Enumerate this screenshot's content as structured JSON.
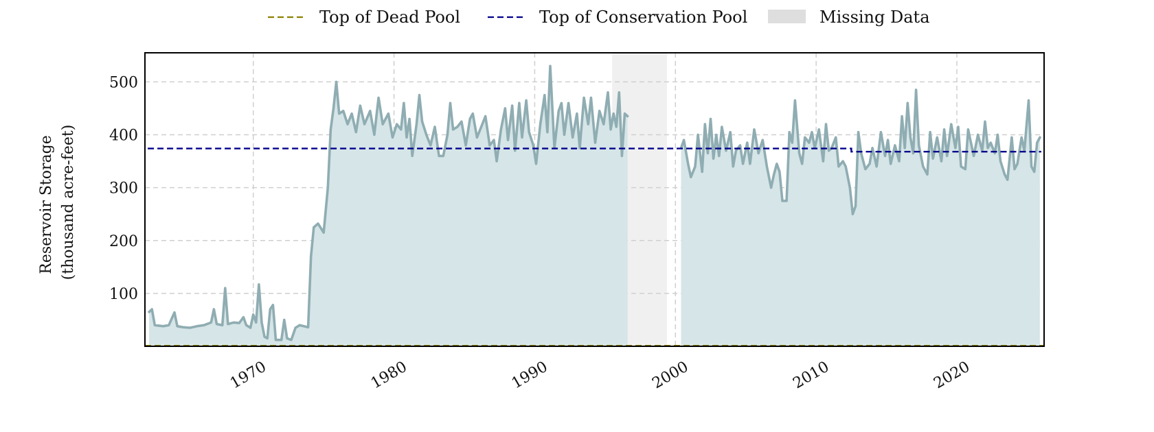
{
  "chart_data": {
    "type": "area",
    "xlabel": "",
    "ylabel_line1": "Reservoir Storage",
    "ylabel_line2": "(thousand acre-feet)",
    "xlim": [
      1962.3,
      2026.2
    ],
    "ylim": [
      0,
      555
    ],
    "xticks": [
      1970,
      1980,
      1990,
      2000,
      2010,
      2020
    ],
    "yticks": [
      100,
      200,
      300,
      400,
      500
    ],
    "grid": true,
    "legend_position": "top-center",
    "legend": [
      {
        "label": "Top of Dead Pool",
        "style": "dashed-line",
        "color": "#8b8000"
      },
      {
        "label": "Top of Conservation Pool",
        "style": "dashed-line",
        "color": "#00008b"
      },
      {
        "label": "Missing Data",
        "style": "patch",
        "color": "#dedede"
      }
    ],
    "missing_data": [
      [
        1995.5,
        1999.4
      ]
    ],
    "dead_pool": 0,
    "conservation_pool": [
      {
        "x_start": 1962.5,
        "x_end": 2012.5,
        "y": 374
      },
      {
        "x_start": 2012.5,
        "x_end": 2026.0,
        "y": 368
      }
    ],
    "series": [
      {
        "color_line": "#8fadb2",
        "color_fill": "#d6e5e7",
        "points": [
          [
            1962.6,
            65
          ],
          [
            1962.8,
            70
          ],
          [
            1963.0,
            40
          ],
          [
            1963.6,
            38
          ],
          [
            1964.0,
            40
          ],
          [
            1964.4,
            64
          ],
          [
            1964.6,
            38
          ],
          [
            1965.0,
            36
          ],
          [
            1965.5,
            35
          ],
          [
            1966.0,
            38
          ],
          [
            1966.5,
            40
          ],
          [
            1967.0,
            45
          ],
          [
            1967.2,
            70
          ],
          [
            1967.4,
            42
          ],
          [
            1967.8,
            40
          ],
          [
            1968.0,
            110
          ],
          [
            1968.2,
            42
          ],
          [
            1968.6,
            45
          ],
          [
            1969.0,
            44
          ],
          [
            1969.3,
            55
          ],
          [
            1969.5,
            40
          ],
          [
            1969.8,
            35
          ],
          [
            1970.0,
            60
          ],
          [
            1970.2,
            45
          ],
          [
            1970.4,
            117
          ],
          [
            1970.6,
            45
          ],
          [
            1970.8,
            18
          ],
          [
            1971.0,
            15
          ],
          [
            1971.2,
            70
          ],
          [
            1971.4,
            78
          ],
          [
            1971.6,
            12
          ],
          [
            1972.0,
            12
          ],
          [
            1972.2,
            50
          ],
          [
            1972.4,
            15
          ],
          [
            1972.7,
            12
          ],
          [
            1973.0,
            35
          ],
          [
            1973.3,
            40
          ],
          [
            1973.6,
            38
          ],
          [
            1973.9,
            36
          ],
          [
            1974.1,
            170
          ],
          [
            1974.3,
            225
          ],
          [
            1974.6,
            232
          ],
          [
            1975.0,
            215
          ],
          [
            1975.3,
            300
          ],
          [
            1975.5,
            410
          ],
          [
            1975.7,
            450
          ],
          [
            1975.9,
            500
          ],
          [
            1976.1,
            440
          ],
          [
            1976.4,
            445
          ],
          [
            1976.7,
            420
          ],
          [
            1977.0,
            440
          ],
          [
            1977.3,
            405
          ],
          [
            1977.6,
            455
          ],
          [
            1977.9,
            420
          ],
          [
            1978.3,
            445
          ],
          [
            1978.6,
            400
          ],
          [
            1978.9,
            470
          ],
          [
            1979.2,
            420
          ],
          [
            1979.6,
            440
          ],
          [
            1979.9,
            395
          ],
          [
            1980.2,
            420
          ],
          [
            1980.5,
            410
          ],
          [
            1980.7,
            460
          ],
          [
            1980.9,
            395
          ],
          [
            1981.1,
            430
          ],
          [
            1981.3,
            360
          ],
          [
            1981.6,
            420
          ],
          [
            1981.8,
            475
          ],
          [
            1982.0,
            425
          ],
          [
            1982.3,
            400
          ],
          [
            1982.6,
            380
          ],
          [
            1982.9,
            415
          ],
          [
            1983.2,
            360
          ],
          [
            1983.5,
            360
          ],
          [
            1983.8,
            400
          ],
          [
            1984.0,
            460
          ],
          [
            1984.2,
            410
          ],
          [
            1984.5,
            415
          ],
          [
            1984.8,
            425
          ],
          [
            1985.1,
            380
          ],
          [
            1985.4,
            430
          ],
          [
            1985.6,
            440
          ],
          [
            1985.9,
            395
          ],
          [
            1986.2,
            415
          ],
          [
            1986.5,
            435
          ],
          [
            1986.8,
            380
          ],
          [
            1987.1,
            390
          ],
          [
            1987.3,
            350
          ],
          [
            1987.6,
            410
          ],
          [
            1987.9,
            450
          ],
          [
            1988.1,
            390
          ],
          [
            1988.4,
            455
          ],
          [
            1988.6,
            370
          ],
          [
            1988.9,
            460
          ],
          [
            1989.1,
            395
          ],
          [
            1989.4,
            465
          ],
          [
            1989.6,
            405
          ],
          [
            1989.9,
            380
          ],
          [
            1990.1,
            345
          ],
          [
            1990.4,
            420
          ],
          [
            1990.7,
            475
          ],
          [
            1990.9,
            405
          ],
          [
            1991.1,
            530
          ],
          [
            1991.4,
            375
          ],
          [
            1991.7,
            445
          ],
          [
            1991.9,
            460
          ],
          [
            1992.1,
            400
          ],
          [
            1992.4,
            460
          ],
          [
            1992.7,
            395
          ],
          [
            1993.0,
            440
          ],
          [
            1993.2,
            375
          ],
          [
            1993.5,
            470
          ],
          [
            1993.8,
            420
          ],
          [
            1994.0,
            470
          ],
          [
            1994.3,
            385
          ],
          [
            1994.6,
            445
          ],
          [
            1994.9,
            420
          ],
          [
            1995.2,
            480
          ],
          [
            1995.4,
            410
          ],
          [
            1995.6,
            440
          ],
          [
            1995.8,
            415
          ],
          [
            1996.0,
            480
          ],
          [
            1996.2,
            360
          ],
          [
            1996.4,
            440
          ],
          [
            1996.6,
            435
          ],
          null,
          [
            2000.4,
            375
          ],
          [
            2000.6,
            390
          ],
          [
            2000.9,
            345
          ],
          [
            2001.1,
            320
          ],
          [
            2001.4,
            340
          ],
          [
            2001.6,
            400
          ],
          [
            2001.9,
            330
          ],
          [
            2002.1,
            420
          ],
          [
            2002.3,
            365
          ],
          [
            2002.5,
            430
          ],
          [
            2002.7,
            355
          ],
          [
            2002.9,
            400
          ],
          [
            2003.1,
            360
          ],
          [
            2003.3,
            415
          ],
          [
            2003.6,
            370
          ],
          [
            2003.9,
            405
          ],
          [
            2004.1,
            340
          ],
          [
            2004.3,
            370
          ],
          [
            2004.6,
            380
          ],
          [
            2004.8,
            345
          ],
          [
            2005.1,
            385
          ],
          [
            2005.3,
            345
          ],
          [
            2005.6,
            410
          ],
          [
            2005.9,
            365
          ],
          [
            2006.2,
            390
          ],
          [
            2006.5,
            340
          ],
          [
            2006.8,
            300
          ],
          [
            2007.0,
            325
          ],
          [
            2007.2,
            345
          ],
          [
            2007.4,
            330
          ],
          [
            2007.6,
            275
          ],
          [
            2007.9,
            275
          ],
          [
            2008.1,
            405
          ],
          [
            2008.3,
            385
          ],
          [
            2008.5,
            465
          ],
          [
            2008.8,
            365
          ],
          [
            2009.0,
            345
          ],
          [
            2009.2,
            395
          ],
          [
            2009.5,
            385
          ],
          [
            2009.7,
            405
          ],
          [
            2009.9,
            375
          ],
          [
            2010.2,
            410
          ],
          [
            2010.5,
            350
          ],
          [
            2010.7,
            420
          ],
          [
            2010.9,
            370
          ],
          [
            2011.1,
            375
          ],
          [
            2011.4,
            395
          ],
          [
            2011.6,
            340
          ],
          [
            2011.9,
            350
          ],
          [
            2012.1,
            340
          ],
          [
            2012.4,
            300
          ],
          [
            2012.6,
            250
          ],
          [
            2012.8,
            265
          ],
          [
            2013.0,
            405
          ],
          [
            2013.2,
            365
          ],
          [
            2013.5,
            335
          ],
          [
            2013.8,
            345
          ],
          [
            2014.0,
            375
          ],
          [
            2014.3,
            340
          ],
          [
            2014.6,
            405
          ],
          [
            2014.9,
            360
          ],
          [
            2015.1,
            390
          ],
          [
            2015.3,
            345
          ],
          [
            2015.6,
            380
          ],
          [
            2015.9,
            350
          ],
          [
            2016.1,
            435
          ],
          [
            2016.3,
            375
          ],
          [
            2016.5,
            460
          ],
          [
            2016.7,
            395
          ],
          [
            2016.9,
            365
          ],
          [
            2017.1,
            485
          ],
          [
            2017.3,
            380
          ],
          [
            2017.6,
            340
          ],
          [
            2017.9,
            325
          ],
          [
            2018.1,
            405
          ],
          [
            2018.3,
            355
          ],
          [
            2018.6,
            395
          ],
          [
            2018.9,
            350
          ],
          [
            2019.1,
            410
          ],
          [
            2019.3,
            360
          ],
          [
            2019.6,
            420
          ],
          [
            2019.9,
            375
          ],
          [
            2020.1,
            415
          ],
          [
            2020.3,
            340
          ],
          [
            2020.6,
            335
          ],
          [
            2020.8,
            410
          ],
          [
            2021.0,
            385
          ],
          [
            2021.2,
            360
          ],
          [
            2021.5,
            400
          ],
          [
            2021.8,
            370
          ],
          [
            2022.0,
            425
          ],
          [
            2022.2,
            375
          ],
          [
            2022.4,
            385
          ],
          [
            2022.7,
            365
          ],
          [
            2022.9,
            400
          ],
          [
            2023.1,
            350
          ],
          [
            2023.4,
            325
          ],
          [
            2023.6,
            315
          ],
          [
            2023.9,
            395
          ],
          [
            2024.1,
            335
          ],
          [
            2024.3,
            345
          ],
          [
            2024.6,
            395
          ],
          [
            2024.8,
            370
          ],
          [
            2025.1,
            465
          ],
          [
            2025.3,
            340
          ],
          [
            2025.5,
            330
          ],
          [
            2025.7,
            385
          ],
          [
            2025.9,
            395
          ]
        ]
      }
    ]
  }
}
